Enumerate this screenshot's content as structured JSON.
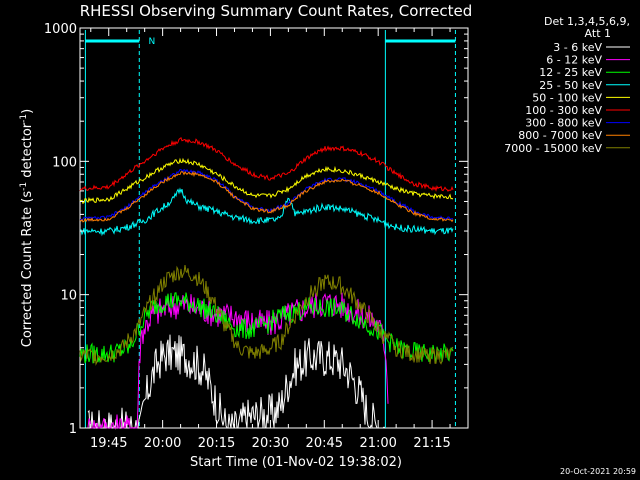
{
  "chart_data": {
    "type": "line",
    "title": "RHESSI Observing Summary Count Rates, Corrected",
    "xlabel": "Start Time (01-Nov-02 19:38:02)",
    "ylabel": "Corrected Count Rate (s",
    "ylabel_sup1": "-1",
    "ylabel_mid": " detector",
    "ylabel_sup2": "-1",
    "ylabel_end": ")",
    "yscale": "log",
    "ylim": [
      1,
      1000
    ],
    "xlim_minutes": [
      -8,
      100
    ],
    "x_ticks": [
      "19:45",
      "20:00",
      "20:15",
      "20:30",
      "20:45",
      "21:00",
      "21:15"
    ],
    "x_tick_minutes": [
      0,
      15,
      30,
      45,
      60,
      75,
      90
    ],
    "y_ticks": [
      "1",
      "10",
      "100",
      "1000"
    ],
    "y_tick_values": [
      1,
      10,
      100,
      1000
    ],
    "legend_header": [
      "Det 1,3,4,5,6,9,",
      "Att 1"
    ],
    "legend_position": "right",
    "grid": false,
    "annotations": [
      {
        "type": "marker",
        "label": "N",
        "x_minute": 12
      }
    ],
    "vertical_lines": [
      {
        "x_minute": -6.5,
        "style": "solid",
        "color": "#00ffff"
      },
      {
        "x_minute": 8.5,
        "style": "dashed",
        "color": "#00ffff"
      },
      {
        "x_minute": 77,
        "style": "solid",
        "color": "#00ffff"
      },
      {
        "x_minute": 96.5,
        "style": "dashed",
        "color": "#00ffff"
      }
    ],
    "top_bars": [
      {
        "x_start_minute": -6.5,
        "x_end_minute": 8.5,
        "color": "#00ffff"
      },
      {
        "x_start_minute": 77,
        "x_end_minute": 96.5,
        "color": "#00ffff"
      }
    ],
    "series": [
      {
        "name": "3 - 6 keV",
        "color": "#ffffff",
        "x": [
          -6,
          9,
          10,
          12,
          14,
          16,
          18,
          22,
          26,
          29,
          31,
          33,
          35,
          36,
          38,
          46,
          48,
          50,
          52,
          56,
          60,
          64,
          67,
          70,
          72,
          75,
          77
        ],
        "y": [
          1,
          1,
          1.5,
          2.4,
          3.2,
          3.6,
          3.6,
          3.4,
          2.8,
          1.8,
          1.3,
          1,
          1,
          1,
          1.2,
          1.3,
          1.5,
          2.2,
          2.9,
          3.4,
          3.4,
          3.2,
          2.6,
          1.8,
          1.3,
          1,
          1
        ]
      },
      {
        "name": "6 - 12 keV",
        "color": "#ff00ff",
        "x": [
          -6,
          8,
          9,
          12,
          16,
          20,
          24,
          28,
          32,
          36,
          40,
          44,
          48,
          52,
          56,
          60,
          64,
          68,
          72,
          75,
          77,
          78
        ],
        "y": [
          1,
          1,
          5,
          7,
          8,
          8.5,
          8,
          7.5,
          7,
          6.8,
          6.2,
          6,
          6.5,
          7.5,
          8.2,
          8.8,
          8.5,
          7.5,
          6.8,
          6,
          4,
          1
        ]
      },
      {
        "name": "12 - 25 keV",
        "color": "#00ff00",
        "x": [
          -8,
          0,
          6,
          9,
          12,
          16,
          20,
          24,
          28,
          32,
          36,
          40,
          44,
          48,
          52,
          56,
          60,
          64,
          68,
          72,
          76,
          80,
          84,
          88,
          92,
          96
        ],
        "y": [
          3.6,
          3.6,
          4,
          6,
          8,
          9,
          9,
          8.5,
          7.5,
          6.5,
          5.5,
          5.5,
          6,
          7,
          7.5,
          8,
          8,
          7.8,
          7,
          6,
          5,
          4,
          3.7,
          3.6,
          3.6,
          3.6
        ]
      },
      {
        "name": "25 - 50 keV",
        "color": "#00ffff",
        "x": [
          -8,
          0,
          5,
          10,
          15,
          18,
          20,
          22,
          25,
          30,
          35,
          40,
          45,
          48,
          50,
          52,
          55,
          60,
          65,
          70,
          75,
          80,
          85,
          90,
          96
        ],
        "y": [
          30,
          30,
          32,
          36,
          45,
          52,
          62,
          50,
          46,
          42,
          38,
          36,
          36,
          37,
          55,
          40,
          42,
          46,
          44,
          40,
          36,
          32,
          31,
          30,
          30
        ]
      },
      {
        "name": "50 - 100 keV",
        "color": "#ffff00",
        "x": [
          -8,
          0,
          5,
          10,
          15,
          20,
          25,
          30,
          35,
          40,
          45,
          50,
          55,
          60,
          65,
          70,
          75,
          80,
          85,
          90,
          96
        ],
        "y": [
          50,
          52,
          62,
          75,
          90,
          102,
          95,
          80,
          65,
          55,
          55,
          62,
          78,
          88,
          85,
          78,
          70,
          62,
          57,
          55,
          54
        ]
      },
      {
        "name": "100 - 300 keV",
        "color": "#ff0000",
        "x": [
          -8,
          0,
          5,
          10,
          15,
          20,
          25,
          30,
          35,
          40,
          45,
          50,
          55,
          60,
          65,
          70,
          75,
          80,
          85,
          90,
          96
        ],
        "y": [
          62,
          64,
          80,
          100,
          125,
          145,
          140,
          120,
          95,
          80,
          75,
          80,
          105,
          125,
          125,
          115,
          100,
          80,
          68,
          63,
          62
        ]
      },
      {
        "name": "300 - 800 keV",
        "color": "#0000ff",
        "x": [
          -8,
          0,
          5,
          10,
          15,
          20,
          25,
          30,
          35,
          40,
          45,
          50,
          55,
          60,
          65,
          70,
          75,
          80,
          85,
          90,
          96
        ],
        "y": [
          37,
          38,
          45,
          58,
          72,
          85,
          83,
          72,
          55,
          45,
          43,
          48,
          62,
          72,
          74,
          68,
          60,
          50,
          42,
          38,
          37
        ]
      },
      {
        "name": "800 - 7000 keV",
        "color": "#ff8000",
        "x": [
          -8,
          0,
          5,
          10,
          15,
          20,
          25,
          30,
          35,
          40,
          45,
          50,
          55,
          60,
          65,
          70,
          75,
          80,
          85,
          90,
          96
        ],
        "y": [
          36,
          37,
          44,
          56,
          70,
          82,
          80,
          70,
          54,
          44,
          42,
          47,
          60,
          70,
          72,
          66,
          58,
          48,
          41,
          37,
          36
        ]
      },
      {
        "name": "7000 - 15000 keV",
        "color": "#808000",
        "x": [
          -8,
          0,
          4,
          8,
          12,
          16,
          20,
          24,
          28,
          32,
          36,
          40,
          44,
          48,
          52,
          56,
          60,
          64,
          68,
          72,
          76,
          80,
          84,
          88,
          92,
          96
        ],
        "y": [
          3.5,
          3.5,
          4,
          5.5,
          9,
          13,
          15,
          14,
          10,
          6,
          4,
          3.6,
          3.8,
          4.5,
          7,
          10,
          12.5,
          12,
          9.5,
          7,
          5,
          4,
          3.6,
          3.5,
          3.5,
          3.5
        ]
      }
    ]
  },
  "footer": {
    "timestamp": "20-Oct-2021 20:59"
  }
}
